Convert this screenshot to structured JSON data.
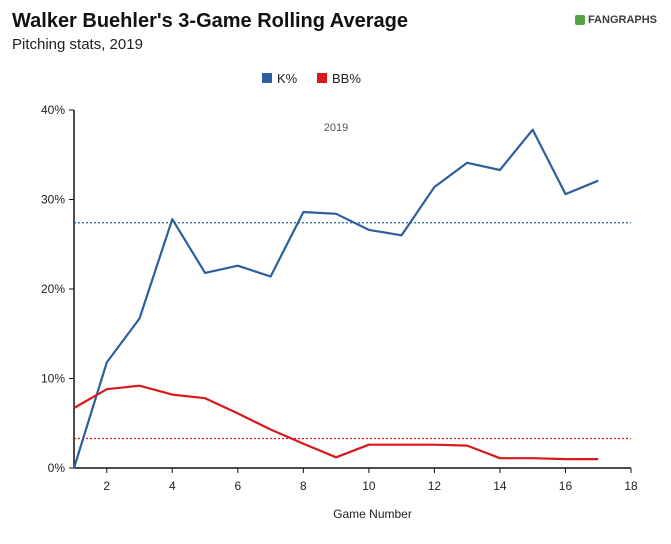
{
  "header": {
    "title": "Walker Buehler's 3-Game Rolling Average",
    "subtitle": "Pitching stats, 2019",
    "brand": "FANGRAPHS"
  },
  "chart_data": {
    "type": "line",
    "title": "Walker Buehler's 3-Game Rolling Average",
    "subtitle": "Pitching stats, 2019",
    "xlabel": "Game Number",
    "ylabel": "",
    "xlim": [
      1,
      18
    ],
    "ylim": [
      0,
      40
    ],
    "x_ticks": [
      2,
      4,
      6,
      8,
      10,
      12,
      14,
      16,
      18
    ],
    "y_ticks": [
      0,
      10,
      20,
      30,
      40
    ],
    "y_tick_labels": [
      "0%",
      "10%",
      "20%",
      "30%",
      "40%"
    ],
    "annotation": "2019",
    "legend_position": "top-center",
    "series": [
      {
        "name": "K%",
        "color": "#2d5f9a",
        "x": [
          1,
          2,
          3,
          4,
          5,
          6,
          7,
          8,
          9,
          10,
          11,
          12,
          13,
          14,
          15,
          16,
          17
        ],
        "values": [
          0,
          11.8,
          16.7,
          27.8,
          21.8,
          22.6,
          21.4,
          28.6,
          28.4,
          26.6,
          26.0,
          31.4,
          34.1,
          33.3,
          37.8,
          30.6,
          32.1
        ],
        "average": 27.4
      },
      {
        "name": "BB%",
        "color": "#d7191c",
        "x": [
          1,
          2,
          3,
          4,
          5,
          6,
          7,
          8,
          9,
          10,
          11,
          12,
          13,
          14,
          15,
          16,
          17
        ],
        "values": [
          6.7,
          8.8,
          9.2,
          8.2,
          7.8,
          6.1,
          4.3,
          2.7,
          1.2,
          2.6,
          2.6,
          2.6,
          2.5,
          1.1,
          1.1,
          1.0,
          1.0
        ],
        "average": 3.3
      }
    ]
  }
}
